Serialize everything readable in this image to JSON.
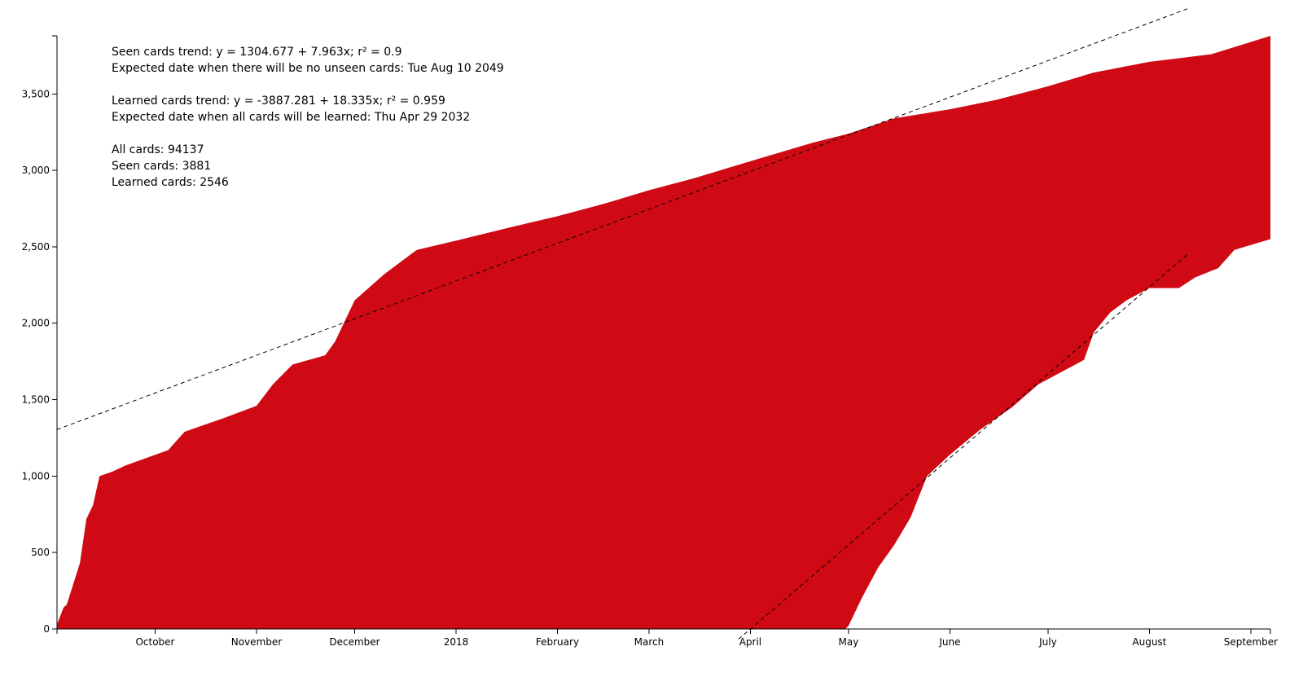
{
  "chart_data": {
    "type": "area",
    "title": "",
    "xlabel": "",
    "ylabel": "",
    "ylim": [
      0,
      3880
    ],
    "xlim": [
      "2017-09-01",
      "2018-09-07"
    ],
    "grid": false,
    "fill_color": "#cf0a15",
    "x_ticks": [
      {
        "date": "2017-10-01",
        "label": "October"
      },
      {
        "date": "2017-11-01",
        "label": "November"
      },
      {
        "date": "2017-12-01",
        "label": "December"
      },
      {
        "date": "2018-01-01",
        "label": "2018"
      },
      {
        "date": "2018-02-01",
        "label": "February"
      },
      {
        "date": "2018-03-01",
        "label": "March"
      },
      {
        "date": "2018-04-01",
        "label": "April"
      },
      {
        "date": "2018-05-01",
        "label": "May"
      },
      {
        "date": "2018-06-01",
        "label": "June"
      },
      {
        "date": "2018-07-01",
        "label": "July"
      },
      {
        "date": "2018-08-01",
        "label": "August"
      },
      {
        "date": "2018-09-01",
        "label": "September"
      }
    ],
    "y_ticks": [
      {
        "value": 0,
        "label": "0"
      },
      {
        "value": 500,
        "label": "500"
      },
      {
        "value": 1000,
        "label": "1,000"
      },
      {
        "value": 1500,
        "label": "1,500"
      },
      {
        "value": 2000,
        "label": "2,000"
      },
      {
        "value": 2500,
        "label": "2,500"
      },
      {
        "value": 3000,
        "label": "3,000"
      },
      {
        "value": 3500,
        "label": "3,500"
      }
    ],
    "series": [
      {
        "x": [
          "2017-09-01",
          "2017-09-03",
          "2017-09-04",
          "2017-09-08",
          "2017-09-10",
          "2017-09-12",
          "2017-09-14",
          "2017-09-18",
          "2017-09-22",
          "2017-10-05",
          "2017-10-10",
          "2017-10-22",
          "2017-11-01",
          "2017-11-06",
          "2017-11-12",
          "2017-11-22",
          "2017-11-25",
          "2017-12-01",
          "2017-12-10",
          "2017-12-20",
          "2018-01-01",
          "2018-01-20",
          "2018-02-01",
          "2018-02-15",
          "2018-03-01",
          "2018-03-15",
          "2018-04-01",
          "2018-04-20",
          "2018-05-01",
          "2018-05-15",
          "2018-06-01",
          "2018-06-15",
          "2018-07-01",
          "2018-07-15",
          "2018-08-01",
          "2018-08-20",
          "2018-09-07"
        ],
        "values": [
          30,
          140,
          160,
          430,
          720,
          810,
          1000,
          1030,
          1070,
          1170,
          1290,
          1380,
          1460,
          1600,
          1730,
          1790,
          1880,
          2150,
          2320,
          2480,
          2540,
          2640,
          2700,
          2780,
          2870,
          2950,
          3060,
          3180,
          3240,
          3340,
          3400,
          3460,
          3550,
          3640,
          3710,
          3760,
          3880
        ]
      },
      {
        "x": [
          "2017-09-01",
          "2018-04-30",
          "2018-05-01",
          "2018-05-05",
          "2018-05-10",
          "2018-05-15",
          "2018-05-20",
          "2018-05-25",
          "2018-06-01",
          "2018-06-10",
          "2018-06-20",
          "2018-06-28",
          "2018-07-05",
          "2018-07-12",
          "2018-07-15",
          "2018-07-20",
          "2018-07-25",
          "2018-08-01",
          "2018-08-10",
          "2018-08-15",
          "2018-08-22",
          "2018-08-27",
          "2018-09-07"
        ],
        "values": [
          0,
          0,
          20,
          200,
          400,
          550,
          730,
          1000,
          1140,
          1300,
          1450,
          1600,
          1680,
          1760,
          1940,
          2070,
          2150,
          2230,
          2230,
          2300,
          2360,
          2480,
          2550
        ]
      }
    ],
    "trend_lines": [
      {
        "intercept": 1304.677,
        "slope": 7.963
      },
      {
        "intercept": -3887.281,
        "slope": 18.335
      }
    ],
    "annotations": [
      "Seen cards trend: y = 1304.677 + 7.963x; r² = 0.9",
      "Expected date when there will be no unseen cards: Tue Aug 10 2049",
      "Learned cards trend: y = -3887.281 + 18.335x; r² = 0.959",
      "Expected date when all cards will be learned: Thu Apr 29 2032",
      "All cards: 94137",
      "Seen cards: 3881",
      "Learned cards: 2546"
    ]
  }
}
